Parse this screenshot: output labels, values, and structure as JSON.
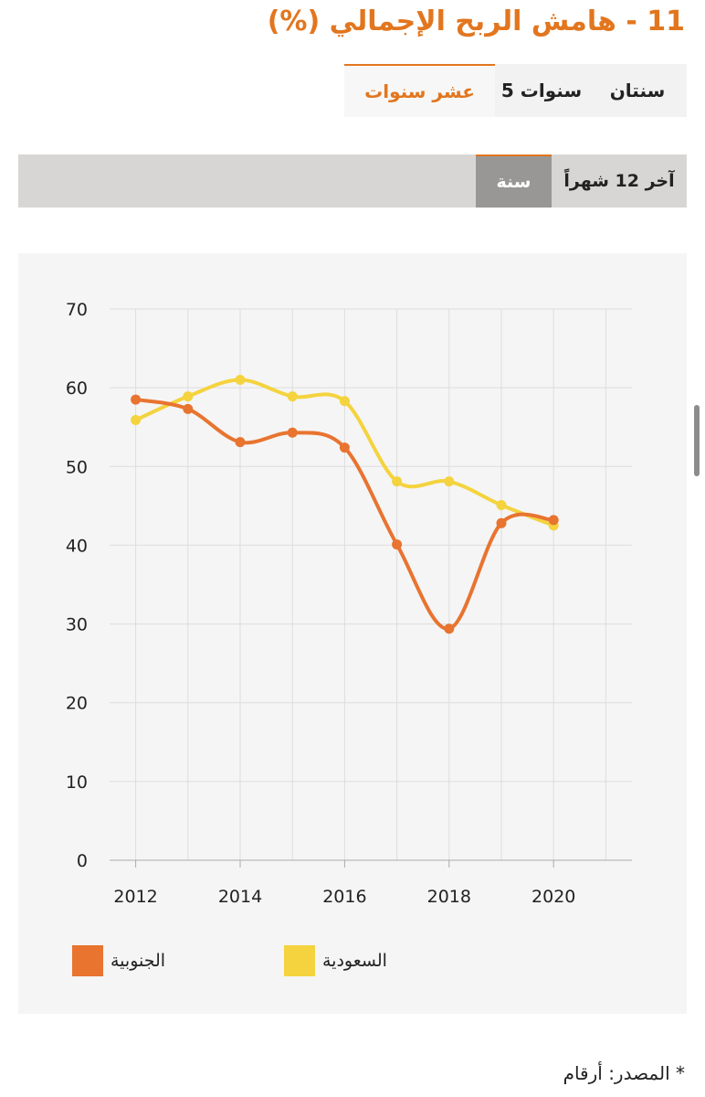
{
  "title": "11 - هامش الربح الإجمالي (%)",
  "period_tabs": [
    "سنتان",
    "5 سنوات",
    "عشر سنوات"
  ],
  "period_active": "عشر سنوات",
  "freq_tabs": [
    "آخر 12 شهراً",
    "سنة"
  ],
  "freq_active": "سنة",
  "colors": {
    "accent": "#e2761f",
    "southern": "#e87430",
    "saudi": "#f4d33e"
  },
  "chart_data": {
    "type": "line",
    "title": "",
    "xlabel": "",
    "ylabel": "",
    "x": [
      2012,
      2013,
      2014,
      2015,
      2016,
      2017,
      2018,
      2019,
      2020
    ],
    "x_ticks": [
      2012,
      2014,
      2016,
      2018,
      2020
    ],
    "xlim": [
      2011.5,
      2021.5
    ],
    "y_ticks": [
      0,
      10,
      20,
      30,
      40,
      50,
      60,
      70
    ],
    "ylim": [
      0,
      70
    ],
    "grid": true,
    "series": [
      {
        "name": "الجنوبية",
        "color": "#e87430",
        "values": [
          58.5,
          57.3,
          53.1,
          54.3,
          52.4,
          40.1,
          29.4,
          42.8,
          43.2
        ]
      },
      {
        "name": "السعودية",
        "color": "#f4d33e",
        "values": [
          55.9,
          58.9,
          61.0,
          58.9,
          58.3,
          48.1,
          48.1,
          45.1,
          42.5
        ]
      }
    ],
    "legend_position": "bottom"
  },
  "source": "* المصدر: أرقام"
}
